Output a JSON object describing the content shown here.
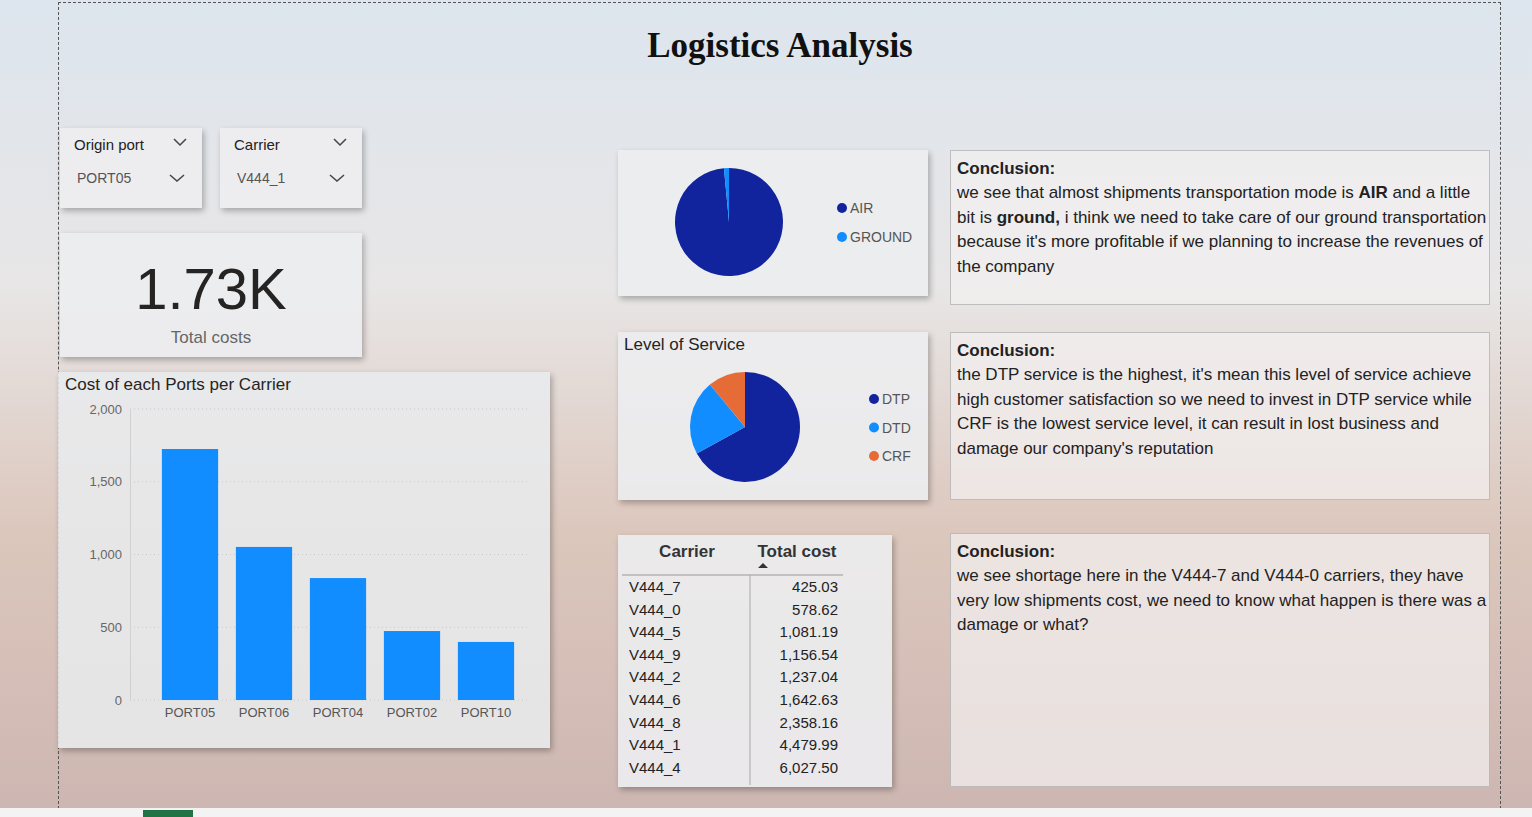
{
  "title": "Logistics Analysis",
  "slicers": [
    {
      "label": "Origin port",
      "value": "PORT05"
    },
    {
      "label": "Carrier",
      "value": "V444_1"
    }
  ],
  "kpi": {
    "value": "1.73K",
    "label": "Total costs"
  },
  "chart_data": [
    {
      "type": "bar",
      "title": "Cost of each Ports per Carrier",
      "categories": [
        "PORT05",
        "PORT06",
        "PORT04",
        "PORT02",
        "PORT10"
      ],
      "values": [
        1725,
        1052,
        838,
        474,
        399
      ],
      "color": "#118dff",
      "ylim": [
        0,
        2000
      ],
      "yticks": [
        0,
        500,
        {
          "value": 1000,
          "label": "1,000"
        },
        {
          "value": 1500,
          "label": "1,500"
        },
        {
          "value": 2000,
          "label": "2,000"
        }
      ],
      "grid": true
    },
    {
      "type": "pie",
      "categories": [
        "AIR",
        "GROUND"
      ],
      "values": [
        98.5,
        1.5
      ],
      "colors": [
        "#12239e",
        "#118dff"
      ],
      "legend": "right"
    },
    {
      "type": "pie",
      "title": "Level of Service",
      "categories": [
        "DTP",
        "DTD",
        "CRF"
      ],
      "values": [
        67,
        22,
        11
      ],
      "colors": [
        "#12239e",
        "#118dff",
        "#e66c37"
      ],
      "legend": "right"
    }
  ],
  "table": {
    "columns": [
      "Carrier",
      "Total cost"
    ],
    "rows": [
      [
        "V444_7",
        "425.03"
      ],
      [
        "V444_0",
        "578.62"
      ],
      [
        "V444_5",
        "1,081.19"
      ],
      [
        "V444_9",
        "1,156.54"
      ],
      [
        "V444_2",
        "1,237.04"
      ],
      [
        "V444_6",
        "1,642.63"
      ],
      [
        "V444_8",
        "2,358.16"
      ],
      [
        "V444_1",
        "4,479.99"
      ],
      [
        "V444_4",
        "6,027.50"
      ]
    ]
  },
  "conclusions": [
    {
      "heading": "Conclusion:",
      "runs": [
        {
          "text": "we see that almost shipments transportation mode is ",
          "bold": false
        },
        {
          "text": "AIR",
          "bold": true
        },
        {
          "text": " and a little bit is ",
          "bold": false
        },
        {
          "text": "ground,",
          "bold": true
        },
        {
          "text": " i think we need to take care of our ground transportation because it's more profitable if we planning to increase the revenues of the company",
          "bold": false
        }
      ]
    },
    {
      "heading": "Conclusion:",
      "runs": [
        {
          "text": "the DTP service is the highest, it's mean this level of service achieve high customer satisfaction so we need to invest in DTP service while CRF is the lowest service level, it can result in lost business and damage our company's reputation",
          "bold": false
        }
      ]
    },
    {
      "heading": "Conclusion:",
      "runs": [
        {
          "text": "we see shortage here in the V444-7 and V444-0 carriers, they have very low shipments cost, we need to know what happen is there was a damage or what?",
          "bold": false
        }
      ]
    }
  ]
}
